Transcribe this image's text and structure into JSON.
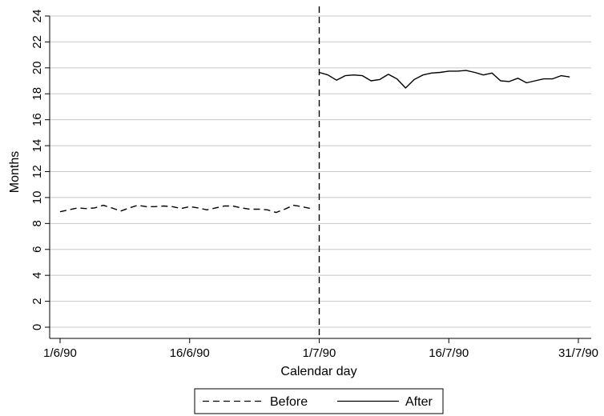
{
  "chart_data": {
    "type": "line",
    "title": "",
    "xlabel": "Calendar day",
    "ylabel": "Months",
    "ylim": [
      0,
      24
    ],
    "xlim": [
      "1990-06-01",
      "1990-07-31"
    ],
    "grid": true,
    "legend_position": "bottom",
    "yticks": [
      0,
      2,
      4,
      6,
      8,
      10,
      12,
      14,
      16,
      18,
      20,
      22,
      24
    ],
    "xticks": [
      {
        "date": "1990-06-01",
        "label": "1/6/90"
      },
      {
        "date": "1990-06-16",
        "label": "16/6/90"
      },
      {
        "date": "1990-07-01",
        "label": "1/7/90"
      },
      {
        "date": "1990-07-16",
        "label": "16/7/90"
      },
      {
        "date": "1990-07-31",
        "label": "31/7/90"
      }
    ],
    "reference_line": {
      "date": "1990-07-01",
      "style": "dashed"
    },
    "series": [
      {
        "name": "Before",
        "style": "dashed",
        "color": "#000000",
        "x": [
          "1990-06-01",
          "1990-06-02",
          "1990-06-03",
          "1990-06-04",
          "1990-06-05",
          "1990-06-06",
          "1990-06-07",
          "1990-06-08",
          "1990-06-09",
          "1990-06-10",
          "1990-06-11",
          "1990-06-12",
          "1990-06-13",
          "1990-06-14",
          "1990-06-15",
          "1990-06-16",
          "1990-06-17",
          "1990-06-18",
          "1990-06-19",
          "1990-06-20",
          "1990-06-21",
          "1990-06-22",
          "1990-06-23",
          "1990-06-24",
          "1990-06-25",
          "1990-06-26",
          "1990-06-27",
          "1990-06-28",
          "1990-06-29",
          "1990-06-30"
        ],
        "y": [
          8.9,
          9.05,
          9.2,
          9.15,
          9.2,
          9.4,
          9.2,
          8.95,
          9.2,
          9.4,
          9.3,
          9.3,
          9.35,
          9.3,
          9.15,
          9.3,
          9.2,
          9.05,
          9.2,
          9.35,
          9.35,
          9.2,
          9.1,
          9.1,
          9.05,
          8.85,
          9.1,
          9.4,
          9.3,
          9.15
        ]
      },
      {
        "name": "After",
        "style": "solid",
        "color": "#000000",
        "x": [
          "1990-07-01",
          "1990-07-02",
          "1990-07-03",
          "1990-07-04",
          "1990-07-05",
          "1990-07-06",
          "1990-07-07",
          "1990-07-08",
          "1990-07-09",
          "1990-07-10",
          "1990-07-11",
          "1990-07-12",
          "1990-07-13",
          "1990-07-14",
          "1990-07-15",
          "1990-07-16",
          "1990-07-17",
          "1990-07-18",
          "1990-07-19",
          "1990-07-20",
          "1990-07-21",
          "1990-07-22",
          "1990-07-23",
          "1990-07-24",
          "1990-07-25",
          "1990-07-26",
          "1990-07-27",
          "1990-07-28",
          "1990-07-29",
          "1990-07-30"
        ],
        "y": [
          19.65,
          19.45,
          19.05,
          19.4,
          19.45,
          19.4,
          19.0,
          19.1,
          19.5,
          19.15,
          18.45,
          19.1,
          19.45,
          19.6,
          19.65,
          19.75,
          19.75,
          19.8,
          19.65,
          19.45,
          19.6,
          19.0,
          18.95,
          19.2,
          18.85,
          19.0,
          19.15,
          19.15,
          19.4,
          19.3
        ]
      }
    ]
  }
}
